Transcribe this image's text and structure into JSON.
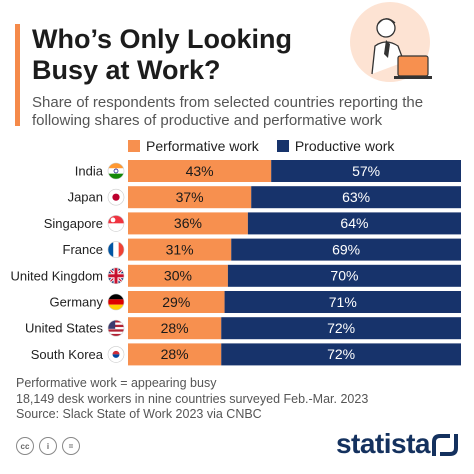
{
  "header": {
    "title": "Who’s Only Looking Busy at Work?",
    "subtitle": "Share of respondents from selected countries reporting the following shares of productive and performative work"
  },
  "legend": {
    "performative": "Performative work",
    "productive": "Productive work"
  },
  "colors": {
    "performative": "#f7904f",
    "productive": "#17336b",
    "accent": "#f58a4a",
    "brand": "#14315e"
  },
  "chart_data": {
    "type": "bar",
    "orientation": "horizontal-stacked",
    "categories": [
      "India",
      "Japan",
      "Singapore",
      "France",
      "United Kingdom",
      "Germany",
      "United States",
      "South Korea"
    ],
    "series": [
      {
        "name": "Performative work",
        "values": [
          43,
          37,
          36,
          31,
          30,
          29,
          28,
          28
        ]
      },
      {
        "name": "Productive work",
        "values": [
          57,
          63,
          64,
          69,
          70,
          71,
          72,
          72
        ]
      }
    ],
    "value_suffix": "%",
    "xlim": [
      0,
      100
    ],
    "legend_position": "top"
  },
  "footnote": {
    "line1": "Performative work = appearing busy",
    "line2": "18,149 desk workers in nine countries surveyed Feb.-Mar. 2023",
    "line3": "Source: Slack State of Work 2023 via CNBC"
  },
  "footer": {
    "cc_icons": [
      "cc-icon",
      "by-icon",
      "nd-icon"
    ],
    "brand": "statista"
  }
}
